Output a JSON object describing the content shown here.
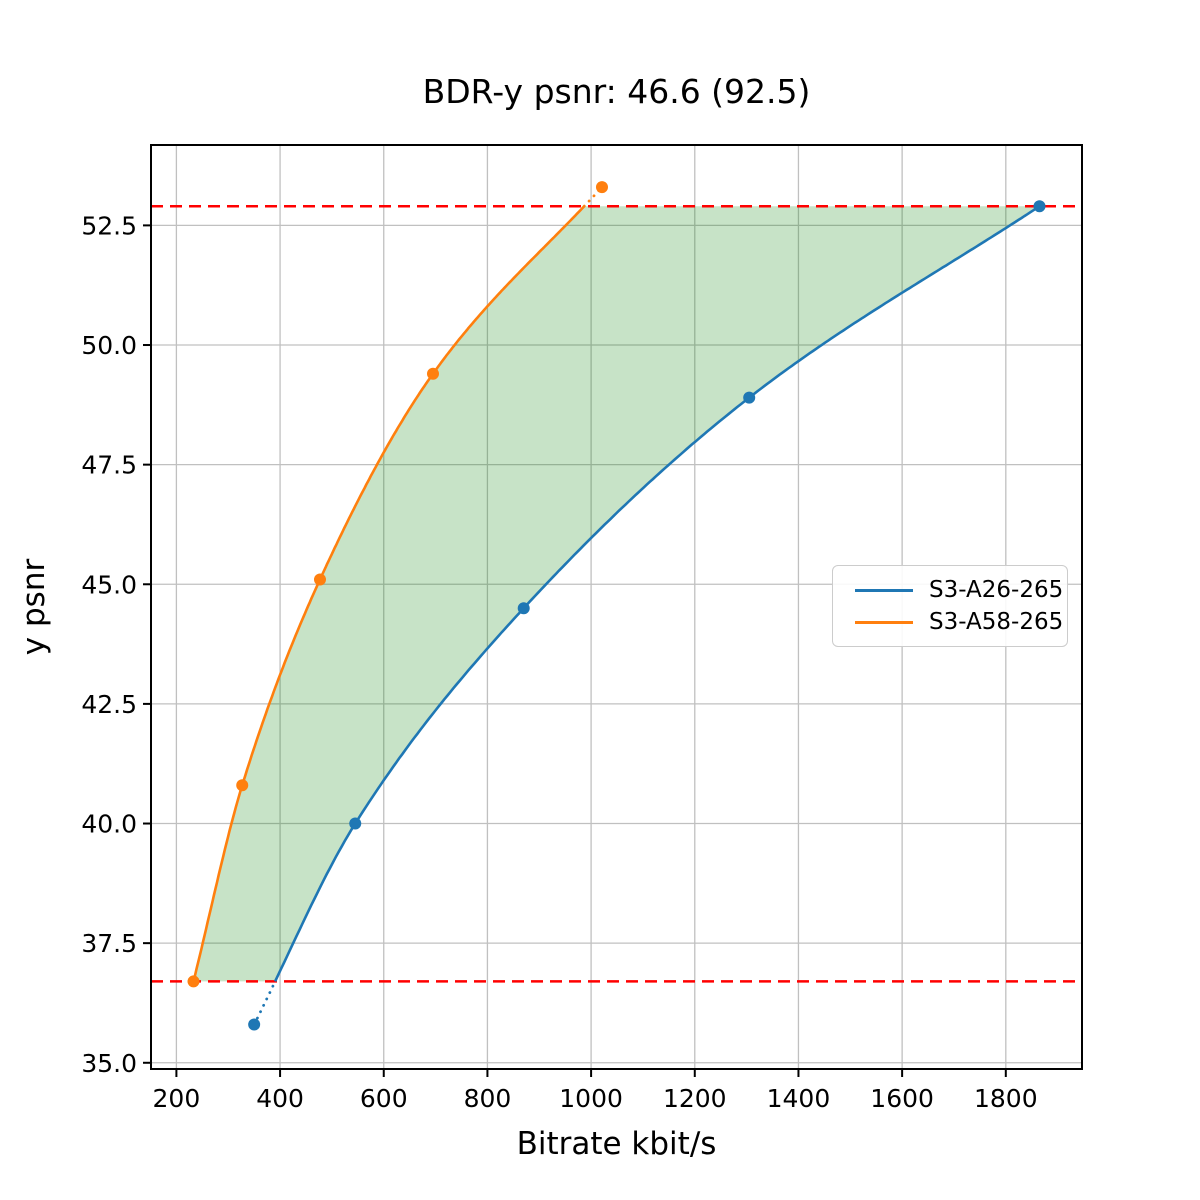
{
  "chart_data": {
    "type": "line",
    "title": "BDR-y psnr: 46.6 (92.5)",
    "xlabel": "Bitrate kbit/s",
    "ylabel": "y psnr",
    "xlim": [
      151,
      1947
    ],
    "ylim": [
      34.87,
      54.18
    ],
    "grid": true,
    "grid_color": "#c0c0c0",
    "legend_position": "center-right",
    "xticks": [
      200,
      400,
      600,
      800,
      1000,
      1200,
      1400,
      1600,
      1800
    ],
    "xtick_labels": [
      "200",
      "400",
      "600",
      "800",
      "1000",
      "1200",
      "1400",
      "1600",
      "1800"
    ],
    "yticks": [
      35.0,
      37.5,
      40.0,
      42.5,
      45.0,
      47.5,
      50.0,
      52.5
    ],
    "ytick_labels": [
      "35.0",
      "37.5",
      "40.0",
      "42.5",
      "45.0",
      "47.5",
      "50.0",
      "52.5"
    ],
    "series": [
      {
        "name": "S3-A26-265",
        "color": "#1f77b4",
        "x": [
          350,
          545,
          870,
          1305,
          1865
        ],
        "y": [
          35.8,
          40.0,
          44.5,
          48.9,
          52.9
        ]
      },
      {
        "name": "S3-A58-265",
        "color": "#ff7f0e",
        "x": [
          233,
          327,
          477,
          695,
          1021
        ],
        "y": [
          36.7,
          40.8,
          45.1,
          49.4,
          53.3
        ]
      }
    ],
    "band": {
      "y_min": 36.7,
      "y_max": 52.9,
      "line_color": "#ff0000",
      "line_style": "dashed",
      "fill_color": "#008000",
      "fill_opacity": 0.22
    },
    "out_of_band_line_style": "dotted"
  }
}
